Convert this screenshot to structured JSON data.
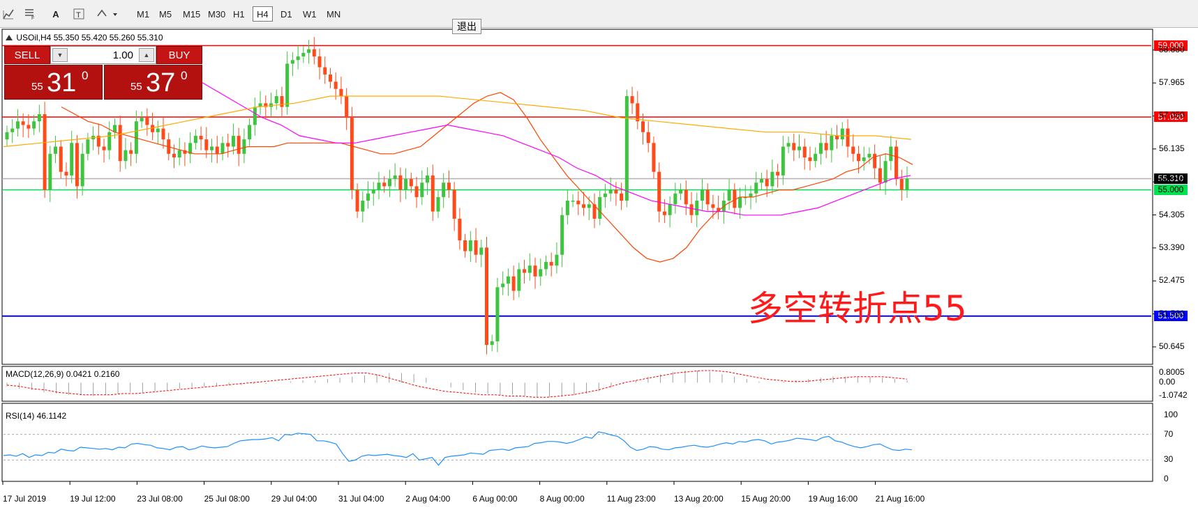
{
  "toolbar": {
    "timeframes": [
      "M1",
      "M5",
      "M15",
      "M30",
      "H1",
      "H4",
      "D1",
      "W1",
      "MN"
    ],
    "active_timeframe": "H4",
    "exit_label": "退出"
  },
  "trade_panel": {
    "sell_label": "SELL",
    "buy_label": "BUY",
    "lot_value": "1.00",
    "sell_price": {
      "prefix": "55",
      "big": "31",
      "sup": "0"
    },
    "buy_price": {
      "prefix": "55",
      "big": "37",
      "sup": "0"
    }
  },
  "annotation": "多空转折点55",
  "chart_data": {
    "type": "candlestick",
    "symbol_header": "USOil,H4  55.350 55.420 55.260 55.310",
    "price_axis": {
      "range": [
        50.2,
        59.3
      ],
      "tick_labels": [
        "58.880",
        "57.965",
        "57.050",
        "56.135",
        "55.220",
        "54.305",
        "53.390",
        "52.475",
        "51.560",
        "50.645"
      ]
    },
    "x_tick_labels": [
      "17 Jul 2019",
      "19 Jul 12:00",
      "23 Jul 08:00",
      "25 Jul 08:00",
      "29 Jul 04:00",
      "31 Jul 04:00",
      "2 Aug 04:00",
      "6 Aug 00:00",
      "8 Aug 00:00",
      "11 Aug 23:00",
      "13 Aug 20:00",
      "15 Aug 20:00",
      "19 Aug 16:00",
      "21 Aug 16:00"
    ],
    "horizontal_lines": [
      {
        "value": 59.0,
        "label": "59.000",
        "color": "#ff0000"
      },
      {
        "value": 57.02,
        "label": "57.020",
        "color": "#ff0000"
      },
      {
        "value": 55.31,
        "label": "55.310",
        "color": "#000000"
      },
      {
        "value": 55.0,
        "label": "55.000",
        "color": "#00e050"
      },
      {
        "value": 51.5,
        "label": "51.500",
        "color": "#0000ff"
      }
    ],
    "bull_color": "#3ec43e",
    "bear_color": "#ff4a1a",
    "close_series": [
      56.6,
      56.7,
      56.9,
      56.8,
      56.7,
      56.9,
      57.1,
      55.0,
      56.0,
      56.2,
      55.5,
      55.4,
      56.3,
      55.1,
      56.0,
      56.4,
      56.5,
      56.2,
      56.1,
      56.6,
      56.8,
      55.8,
      56.1,
      56.0,
      56.9,
      57.0,
      56.8,
      56.6,
      56.7,
      56.4,
      56.0,
      55.9,
      56.1,
      56.0,
      56.3,
      56.5,
      56.4,
      56.1,
      56.2,
      56.0,
      56.3,
      56.2,
      56.5,
      56.0,
      56.4,
      56.8,
      57.3,
      57.4,
      57.3,
      57.4,
      57.6,
      57.3,
      58.5,
      58.6,
      58.7,
      58.8,
      58.9,
      58.7,
      58.4,
      58.2,
      58.0,
      57.8,
      57.6,
      57.0,
      55.0,
      54.4,
      54.7,
      54.9,
      55.0,
      55.2,
      55.1,
      55.3,
      55.4,
      55.0,
      55.3,
      55.1,
      54.8,
      55.2,
      55.4,
      54.4,
      54.8,
      55.2,
      55.0,
      54.2,
      53.6,
      53.3,
      53.6,
      53.2,
      53.4,
      50.7,
      50.8,
      52.3,
      52.4,
      52.6,
      52.2,
      52.8,
      52.7,
      52.9,
      52.6,
      52.8,
      53.0,
      52.9,
      53.2,
      54.3,
      54.7,
      54.7,
      54.6,
      54.5,
      54.6,
      54.2,
      54.8,
      54.9,
      55.0,
      54.9,
      54.7,
      57.6,
      57.4,
      56.9,
      56.6,
      56.3,
      55.5,
      54.4,
      54.3,
      54.6,
      54.9,
      55.0,
      54.6,
      54.3,
      54.7,
      55.0,
      54.6,
      54.5,
      54.4,
      54.7,
      55.0,
      54.5,
      54.8,
      54.8,
      54.9,
      55.2,
      55.3,
      55.1,
      55.5,
      55.4,
      56.2,
      56.3,
      56.1,
      56.2,
      55.9,
      55.8,
      56.0,
      56.3,
      56.1,
      56.5,
      56.4,
      56.7,
      56.2,
      56.0,
      55.8,
      55.9,
      56.0,
      55.6,
      55.2,
      55.8,
      56.2,
      55.3,
      55.0,
      55.31
    ],
    "ma_series": [
      {
        "name": "short",
        "color": "#ff4400",
        "values": [
          57.3,
          57.1,
          56.9,
          56.8,
          56.6,
          56.5,
          56.4,
          56.3,
          56.2,
          56.1,
          56.0,
          56.0,
          56.0,
          56.1,
          56.2,
          56.2,
          56.2,
          56.3,
          56.3,
          56.3,
          56.3,
          56.3,
          56.2,
          56.1,
          56.0,
          56.0,
          56.1,
          56.2,
          56.5,
          56.8,
          57.1,
          57.4,
          57.6,
          57.7,
          57.5,
          57.0,
          56.4,
          55.9,
          55.4,
          55.0,
          54.6,
          54.2,
          53.8,
          53.4,
          53.1,
          53.0,
          53.1,
          53.4,
          53.9,
          54.3,
          54.6,
          54.8,
          54.8,
          54.9,
          55.0,
          55.0,
          55.1,
          55.2,
          55.3,
          55.5,
          55.6,
          55.9,
          56.0,
          55.9,
          55.7
        ]
      },
      {
        "name": "medium",
        "color": "#ff00ff",
        "values": [
          58.2,
          57.9,
          57.6,
          57.3,
          57.0,
          56.8,
          56.5,
          56.4,
          56.3,
          56.3,
          56.4,
          56.5,
          56.6,
          56.7,
          56.8,
          56.7,
          56.6,
          56.5,
          56.3,
          56.1,
          55.9,
          55.6,
          55.4,
          55.1,
          54.9,
          54.7,
          54.6,
          54.5,
          54.4,
          54.4,
          54.3,
          54.3,
          54.3,
          54.4,
          54.5,
          54.7,
          54.9,
          55.1,
          55.3,
          55.4
        ]
      },
      {
        "name": "long",
        "color": "#ffaa00",
        "values": [
          56.2,
          56.3,
          56.4,
          56.5,
          56.7,
          56.9,
          57.1,
          57.3,
          57.4,
          57.6,
          57.6,
          57.6,
          57.6,
          57.5,
          57.4,
          57.3,
          57.2,
          57.0,
          56.9,
          56.8,
          56.7,
          56.6,
          56.6,
          56.5,
          56.5,
          56.4
        ]
      }
    ],
    "macd": {
      "label": "MACD(12,26,9) 0.0421 0.2160",
      "tick_labels": [
        "0.8005",
        "0.00",
        "-1.0742"
      ],
      "range": [
        -1.3,
        1.0
      ],
      "histogram": [
        -0.3,
        -0.5,
        -0.6,
        -0.8,
        -0.9,
        -1.0,
        -1.0,
        -1.1,
        -1.0,
        -0.9,
        -0.8,
        -0.8,
        -0.7,
        -0.6,
        -0.5,
        -0.4,
        -0.3,
        -0.3,
        -0.2,
        -0.2,
        -0.1,
        -0.1,
        0.0,
        0.1,
        0.2,
        0.2,
        0.3,
        0.4,
        0.5,
        0.6,
        0.7,
        0.8,
        0.8,
        0.7,
        0.4,
        0.0,
        -0.4,
        -0.6,
        -0.8,
        -0.9,
        -1.0,
        -1.0,
        -1.1,
        -1.2,
        -1.2,
        -1.1,
        -1.0,
        -0.9,
        -0.7,
        -0.4,
        -0.1,
        0.2,
        0.5,
        0.7,
        0.9,
        1.0,
        1.0,
        0.9,
        0.7,
        0.5,
        0.3,
        0.1,
        0.0,
        0.1,
        0.2,
        0.3,
        0.4,
        0.5,
        0.5,
        0.5,
        0.5,
        0.4,
        0.3,
        0.2
      ],
      "signal": [
        -0.2,
        -0.3,
        -0.5,
        -0.6,
        -0.8,
        -0.9,
        -1.0,
        -1.0,
        -1.0,
        -0.9,
        -0.9,
        -0.8,
        -0.7,
        -0.6,
        -0.5,
        -0.4,
        -0.3,
        -0.2,
        -0.1,
        0.0,
        0.1,
        0.2,
        0.3,
        0.4,
        0.5,
        0.6,
        0.7,
        0.8,
        0.8,
        0.6,
        0.3,
        0.0,
        -0.3,
        -0.5,
        -0.7,
        -0.8,
        -0.9,
        -1.0,
        -1.0,
        -1.1,
        -1.1,
        -1.2,
        -1.2,
        -1.1,
        -1.0,
        -0.8,
        -0.6,
        -0.3,
        0.0,
        0.2,
        0.4,
        0.6,
        0.8,
        0.9,
        1.0,
        1.0,
        0.9,
        0.7,
        0.5,
        0.3,
        0.2,
        0.1,
        0.1,
        0.2,
        0.3,
        0.4,
        0.5,
        0.5,
        0.5,
        0.4,
        0.3
      ]
    },
    "rsi": {
      "label": "RSI(14) 46.1142",
      "tick_labels": [
        "100",
        "70",
        "30",
        "0"
      ],
      "levels": [
        70,
        30
      ],
      "values": [
        37,
        38,
        36,
        40,
        34,
        38,
        37,
        42,
        41,
        47,
        45,
        44,
        50,
        49,
        48,
        47,
        48,
        46,
        50,
        49,
        55,
        56,
        54,
        53,
        49,
        48,
        46,
        50,
        51,
        46,
        48,
        52,
        50,
        49,
        50,
        51,
        56,
        60,
        61,
        62,
        62,
        63,
        65,
        60,
        70,
        69,
        72,
        71,
        70,
        60,
        60,
        58,
        55,
        40,
        28,
        30,
        36,
        38,
        37,
        38,
        39,
        37,
        36,
        34,
        40,
        30,
        32,
        34,
        22,
        34,
        36,
        37,
        38,
        41,
        40,
        39,
        45,
        46,
        47,
        45,
        49,
        50,
        51,
        56,
        57,
        59,
        59,
        58,
        56,
        58,
        62,
        66,
        64,
        74,
        72,
        69,
        67,
        60,
        50,
        45,
        47,
        51,
        50,
        47,
        46,
        49,
        50,
        52,
        53,
        51,
        50,
        52,
        55,
        57,
        55,
        59,
        58,
        61,
        62,
        60,
        55,
        58,
        59,
        61,
        64,
        63,
        62,
        60,
        65,
        67,
        60,
        58,
        54,
        51,
        49,
        51,
        54,
        55,
        50,
        46,
        45,
        47,
        46
      ]
    }
  }
}
